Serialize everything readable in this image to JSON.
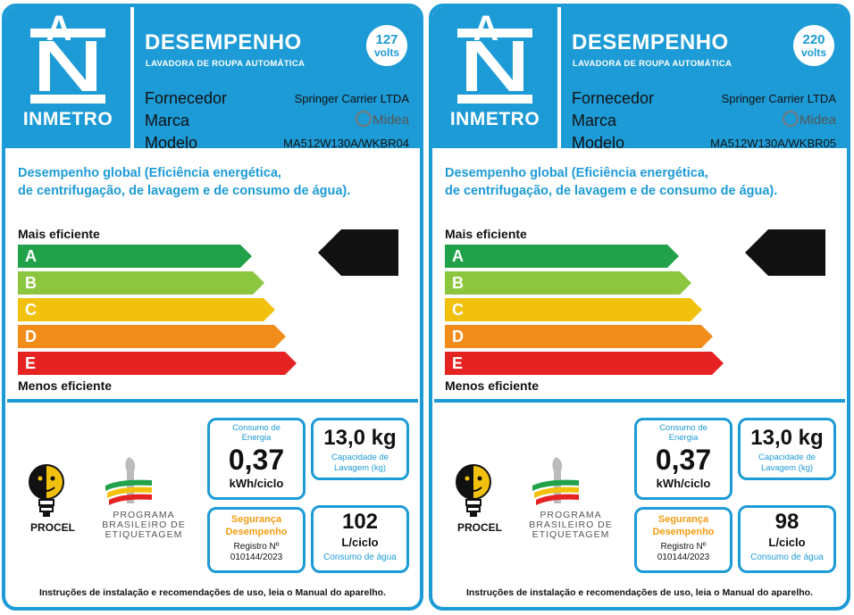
{
  "labels": [
    {
      "logo_text": "INMETRO",
      "title": "DESEMPENHO",
      "subtitle": "LAVADORA DE ROUPA AUTOMÁTICA",
      "voltage_number": "127",
      "voltage_unit": "volts",
      "supplier_label": "Fornecedor",
      "supplier_value": "Springer Carrier LTDA",
      "brand_label": "Marca",
      "brand_value": "Midea",
      "model_label": "Modelo",
      "model_value": "MA512W130A/WKBR04",
      "performance_line1": "Desempenho global (Eficiência energética,",
      "performance_line2": "de centrifugação, de lavagem e de consumo de água).",
      "most_efficient": "Mais eficiente",
      "least_efficient": "Menos eficiente",
      "classes": [
        "A",
        "B",
        "C",
        "D",
        "E"
      ],
      "rating": "A",
      "energy_title_1": "Consumo de",
      "energy_title_2": "Energia",
      "energy_value": "0,37",
      "energy_unit": "kWh/ciclo",
      "capacity_value": "13,0 kg",
      "capacity_title_1": "Capacidade de",
      "capacity_title_2": "Lavagem (kg)",
      "safety_title_1": "Segurança",
      "safety_title_2": "Desempenho",
      "registry_label": "Registro Nº",
      "registry_value": "010144/2023",
      "water_value": "102",
      "water_unit": "L/ciclo",
      "water_title": "Consumo de água",
      "procel": "PROCEL",
      "pbe_line1": "PROGRAMA",
      "pbe_line2": "BRASILEIRO DE",
      "pbe_line3": "ETIQUETAGEM",
      "footer": "Instruções de instalação e recomendações de uso, leia o Manual do aparelho."
    },
    {
      "logo_text": "INMETRO",
      "title": "DESEMPENHO",
      "subtitle": "LAVADORA DE ROUPA AUTOMÁTICA",
      "voltage_number": "220",
      "voltage_unit": "volts",
      "supplier_label": "Fornecedor",
      "supplier_value": "Springer Carrier LTDA",
      "brand_label": "Marca",
      "brand_value": "Midea",
      "model_label": "Modelo",
      "model_value": "MA512W130A/WKBR05",
      "performance_line1": "Desempenho global (Eficiência energética,",
      "performance_line2": "de centrifugação, de lavagem e de consumo de água).",
      "most_efficient": "Mais eficiente",
      "least_efficient": "Menos eficiente",
      "classes": [
        "A",
        "B",
        "C",
        "D",
        "E"
      ],
      "rating": "A",
      "energy_title_1": "Consumo de",
      "energy_title_2": "Energia",
      "energy_value": "0,37",
      "energy_unit": "kWh/ciclo",
      "capacity_value": "13,0 kg",
      "capacity_title_1": "Capacidade de",
      "capacity_title_2": "Lavagem (kg)",
      "safety_title_1": "Segurança",
      "safety_title_2": "Desempenho",
      "registry_label": "Registro Nº",
      "registry_value": "010144/2023",
      "water_value": "98",
      "water_unit": "L/ciclo",
      "water_title": "Consumo de água",
      "procel": "PROCEL",
      "pbe_line1": "PROGRAMA",
      "pbe_line2": "BRASILEIRO DE",
      "pbe_line3": "ETIQUETAGEM",
      "footer": "Instruções de instalação e recomendações de uso, leia o Manual do aparelho."
    }
  ],
  "colors": {
    "frame_blue": "#1d9bd6",
    "class_colors": [
      "#21a24a",
      "#8cc63f",
      "#f2c10e",
      "#f28c1a",
      "#e62323"
    ],
    "rating_badge": "#111111",
    "safety_orange": "#f39c12"
  }
}
